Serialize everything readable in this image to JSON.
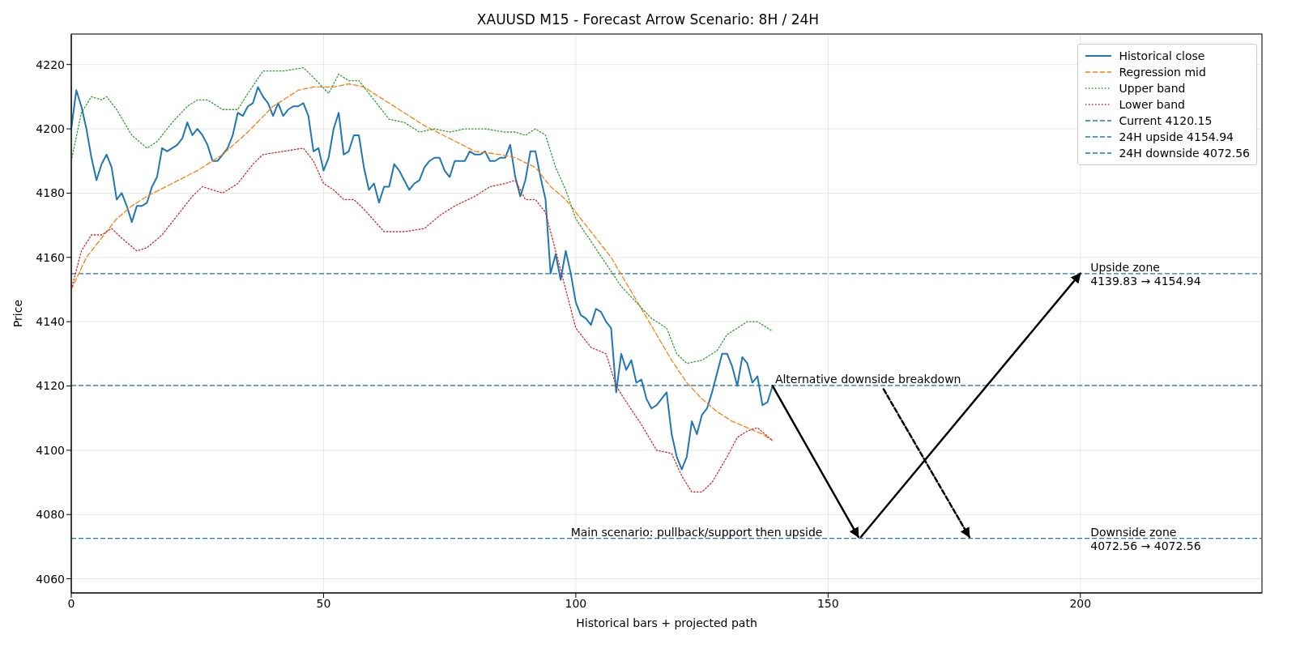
{
  "chart_data": {
    "type": "line",
    "title": "XAUUSD M15 - Forecast Arrow Scenario: 8H / 24H",
    "xlabel": "Historical bars + projected path",
    "ylabel": "Price",
    "xlim": [
      0,
      236
    ],
    "xticks": [
      0,
      50,
      100,
      150,
      200
    ],
    "ylim": [
      4055.6,
      4229.5
    ],
    "yticks": [
      4060,
      4080,
      4100,
      4120,
      4140,
      4160,
      4180,
      4200,
      4220
    ],
    "grid": true,
    "legend": "top right",
    "series": [
      {
        "name": "Historical close",
        "color": "#1f77b4",
        "line_style": "solid",
        "x": [
          0,
          1,
          2,
          3,
          4,
          5,
          6,
          7,
          8,
          9,
          10,
          11,
          12,
          13,
          14,
          15,
          16,
          17,
          18,
          19,
          20,
          21,
          22,
          23,
          24,
          25,
          26,
          27,
          28,
          29,
          30,
          31,
          32,
          33,
          34,
          35,
          36,
          37,
          38,
          39,
          40,
          41,
          42,
          43,
          44,
          45,
          46,
          47,
          48,
          49,
          50,
          51,
          52,
          53,
          54,
          55,
          56,
          57,
          58,
          59,
          60,
          61,
          62,
          63,
          64,
          65,
          66,
          67,
          68,
          69,
          70,
          71,
          72,
          73,
          74,
          75,
          76,
          77,
          78,
          79,
          80,
          81,
          82,
          83,
          84,
          85,
          86,
          87,
          88,
          89,
          90,
          91,
          92,
          93,
          94,
          95,
          96,
          97,
          98,
          99,
          100,
          101,
          102,
          103,
          104,
          105,
          106,
          107,
          108,
          109,
          110,
          111,
          112,
          113,
          114,
          115,
          116,
          117,
          118,
          119,
          120,
          121,
          122,
          123,
          124,
          125,
          126,
          127,
          128,
          129,
          130,
          131,
          132,
          133,
          134,
          135,
          136,
          137,
          138,
          139
        ],
        "values": [
          4200,
          4212,
          4207,
          4200,
          4191,
          4184,
          4189,
          4192,
          4188,
          4178,
          4180,
          4176,
          4171,
          4176,
          4176,
          4177,
          4182,
          4185,
          4194,
          4193,
          4194,
          4195,
          4197,
          4202,
          4198,
          4200,
          4198,
          4195,
          4190,
          4190,
          4192,
          4194,
          4198,
          4205,
          4204,
          4207,
          4208,
          4213,
          4210,
          4208,
          4204,
          4208,
          4204,
          4206,
          4207,
          4207,
          4208,
          4204,
          4193,
          4194,
          4187,
          4191,
          4200,
          4205,
          4192,
          4193,
          4198,
          4198,
          4188,
          4181,
          4183,
          4177,
          4182,
          4182,
          4189,
          4187,
          4184,
          4181,
          4183,
          4184,
          4188,
          4190,
          4191,
          4191,
          4187,
          4185,
          4190,
          4190,
          4190,
          4193,
          4192,
          4192,
          4193,
          4190,
          4190,
          4191,
          4191,
          4195,
          4185,
          4179,
          4184,
          4193,
          4193,
          4185,
          4178,
          4155,
          4161,
          4153,
          4162,
          4155,
          4146,
          4142,
          4141,
          4139,
          4144,
          4143,
          4140,
          4138,
          4118,
          4130,
          4125,
          4128,
          4121,
          4122,
          4116,
          4113,
          4114,
          4116,
          4118,
          4105,
          4098,
          4094,
          4098,
          4109,
          4105,
          4111,
          4113,
          4118,
          4124,
          4130,
          4130,
          4126,
          4120,
          4129,
          4127,
          4121,
          4123,
          4114,
          4115,
          4120
        ]
      },
      {
        "name": "Regression mid",
        "color": "#ff7f0e",
        "line_style": "dashed",
        "x": [
          0,
          3,
          6,
          9,
          12,
          15,
          20,
          25,
          30,
          35,
          40,
          45,
          48,
          52,
          55,
          58,
          62,
          66,
          70,
          75,
          80,
          85,
          88,
          92,
          95,
          98,
          101,
          104,
          107,
          110,
          113,
          116,
          119,
          122,
          125,
          128,
          131,
          134,
          137,
          139
        ],
        "values": [
          4150,
          4160,
          4166,
          4172,
          4176,
          4179,
          4183,
          4187,
          4192,
          4199,
          4207,
          4212,
          4213,
          4213,
          4214,
          4213,
          4209,
          4205,
          4201,
          4197,
          4193,
          4192,
          4191,
          4188,
          4182,
          4178,
          4172,
          4166,
          4160,
          4152,
          4144,
          4136,
          4128,
          4121,
          4116,
          4112,
          4109,
          4107,
          4105,
          4103
        ]
      },
      {
        "name": "Upper band",
        "color": "#2ca02c",
        "line_style": "dotted",
        "x": [
          0,
          2,
          4,
          6,
          7,
          9,
          12,
          15,
          17,
          20,
          23,
          25,
          27,
          30,
          33,
          35,
          38,
          40,
          42,
          46,
          48,
          51,
          53,
          55,
          57,
          60,
          63,
          66,
          69,
          72,
          75,
          78,
          82,
          86,
          88,
          90,
          92,
          94,
          96,
          98,
          100,
          103,
          106,
          109,
          112,
          115,
          118,
          120,
          122,
          125,
          128,
          130,
          132,
          134,
          136,
          139
        ],
        "values": [
          4190,
          4205,
          4210,
          4209,
          4210,
          4206,
          4198,
          4194,
          4196,
          4202,
          4207,
          4209,
          4209,
          4206,
          4206,
          4211,
          4218,
          4218,
          4218,
          4219,
          4216,
          4211,
          4217,
          4215,
          4215,
          4209,
          4203,
          4202,
          4199,
          4200,
          4199,
          4200,
          4200,
          4199,
          4199,
          4198,
          4200,
          4198,
          4188,
          4181,
          4172,
          4165,
          4158,
          4151,
          4146,
          4141,
          4138,
          4130,
          4127,
          4128,
          4131,
          4136,
          4138,
          4140,
          4140,
          4137
        ]
      },
      {
        "name": "Lower band",
        "color": "#d62728",
        "line_style": "dotted",
        "x": [
          0,
          2,
          4,
          6,
          8,
          10,
          13,
          15,
          18,
          21,
          24,
          26,
          28,
          30,
          33,
          36,
          38,
          42,
          46,
          48,
          50,
          52,
          54,
          56,
          58,
          62,
          66,
          70,
          73,
          76,
          80,
          83,
          86,
          88,
          90,
          92,
          94,
          96,
          98,
          100,
          103,
          106,
          108,
          110,
          113,
          116,
          119,
          121,
          123,
          125,
          127,
          130,
          132,
          134,
          136,
          139
        ],
        "values": [
          4150,
          4162,
          4167,
          4167,
          4169,
          4166,
          4162,
          4163,
          4167,
          4173,
          4179,
          4182,
          4181,
          4180,
          4183,
          4189,
          4192,
          4193,
          4194,
          4190,
          4183,
          4181,
          4178,
          4178,
          4175,
          4168,
          4168,
          4169,
          4173,
          4176,
          4179,
          4182,
          4183,
          4184,
          4178,
          4178,
          4174,
          4162,
          4150,
          4138,
          4132,
          4130,
          4120,
          4115,
          4108,
          4100,
          4099,
          4092,
          4087,
          4087,
          4090,
          4098,
          4104,
          4106,
          4107,
          4103
        ]
      },
      {
        "color": "#000000",
        "line_style": "solid",
        "x": [
          139,
          156
        ],
        "values": [
          4120,
          4073
        ]
      },
      {
        "color": "#000000",
        "line_style": "solid",
        "x": [
          156.5,
          200
        ],
        "values": [
          4073,
          4155
        ]
      },
      {
        "color": "#000000",
        "line_style": "dashed",
        "x": [
          161,
          178
        ],
        "values": [
          4119,
          4073
        ]
      }
    ],
    "ref_lines": [
      {
        "axis": "y",
        "value": 4120.15,
        "label": "Current 4120.15",
        "color": "#1f77b4",
        "line_style": "dashed"
      },
      {
        "axis": "y",
        "value": 4154.94,
        "label": "24H upside 4154.94",
        "color": "#1f77b4",
        "line_style": "dashed"
      },
      {
        "axis": "y",
        "value": 4072.56,
        "label": "24H downside 4072.56",
        "color": "#1f77b4",
        "line_style": "dashed"
      }
    ],
    "annotations": [
      {
        "text": "Alternative downside breakdown",
        "x": 139.5,
        "y": 4120.15
      },
      {
        "text": "Main scenario: pullback/support then upside",
        "x": 99,
        "y": 4072.56
      },
      {
        "text": "Upside zone\n4139.83 → 4154.94",
        "x": 202,
        "y": 4154.94
      },
      {
        "text": "Downside zone\n4072.56 → 4072.56",
        "x": 202,
        "y": 4072.56
      }
    ]
  }
}
